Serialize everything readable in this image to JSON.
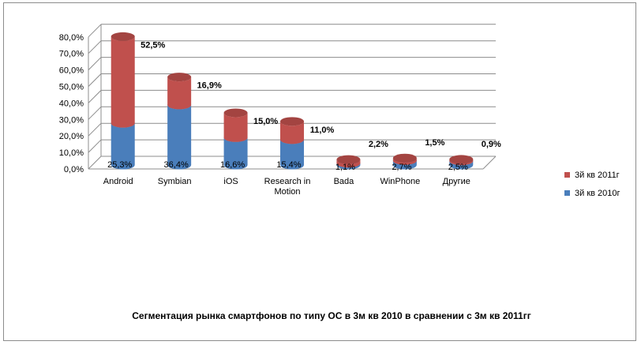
{
  "chart_data": {
    "type": "bar",
    "stacked": true,
    "style": "3d-cylinder",
    "title": "Сегментация рынка смартфонов по типу ОС в 3м кв 2010 в сравнении с 3м кв 2011гг",
    "categories": [
      "Android",
      "Symbian",
      "iOS",
      "Research in Motion",
      "Bada",
      "WinPhone",
      "Другие"
    ],
    "series": [
      {
        "name": "3й кв  2010г",
        "color": "#4a7ebb",
        "values": [
          25.3,
          36.4,
          16.6,
          15.4,
          1.1,
          2.7,
          2.5
        ],
        "labels": [
          "25,3%",
          "36,4%",
          "16,6%",
          "15,4%",
          "1,1%",
          "2,7%",
          "2,5%"
        ]
      },
      {
        "name": "3й кв  2011г",
        "color": "#c0504d",
        "values": [
          52.5,
          16.9,
          15.0,
          11.0,
          2.2,
          1.5,
          0.9
        ],
        "labels": [
          "52,5%",
          "16,9%",
          "15,0%",
          "11,0%",
          "2,2%",
          "1,5%",
          "0,9%"
        ]
      }
    ],
    "yticks": [
      "0,0%",
      "10,0%",
      "20,0%",
      "30,0%",
      "40,0%",
      "50,0%",
      "60,0%",
      "70,0%",
      "80,0%"
    ],
    "ylim": [
      0,
      80
    ],
    "grid": true,
    "legend_position": "right"
  }
}
